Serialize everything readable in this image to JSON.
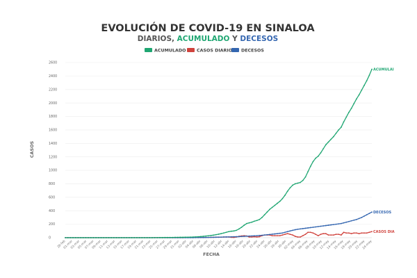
{
  "page": {
    "title": "EVOLUCIÓN DE COVID-19 EN SINALOA",
    "subtitle_parts": [
      {
        "text": "DIARIOS, ",
        "color": "#555555"
      },
      {
        "text": "ACUMULADO",
        "color": "#1fa672"
      },
      {
        "text": " Y ",
        "color": "#555555"
      },
      {
        "text": "DECESOS",
        "color": "#3466b0"
      }
    ]
  },
  "chart_data": {
    "type": "line",
    "title": "EVOLUCIÓN DE COVID-19 EN SINALOA",
    "xlabel": "FECHA",
    "ylabel": "CASOS",
    "ylim": [
      0,
      2600
    ],
    "yticks": [
      0,
      200,
      400,
      600,
      800,
      1000,
      1200,
      1400,
      1600,
      1800,
      2000,
      2200,
      2400,
      2600
    ],
    "grid": true,
    "legend_position": "top-center",
    "x_tick_labels": [
      "28-feb",
      "01-mar",
      "03-mar",
      "05-mar",
      "07-mar",
      "09-mar",
      "11-mar",
      "13-mar",
      "15-mar",
      "17-mar",
      "19-mar",
      "21-mar",
      "23-mar",
      "25-mar",
      "27-mar",
      "29-mar",
      "31-mar",
      "02-abr",
      "04-abr",
      "06-abr",
      "08-abr",
      "10-abr",
      "12-abr",
      "14-abr",
      "16-abr",
      "18-abr",
      "20-abr",
      "22-abr",
      "24-abr",
      "26-abr",
      "28-abr",
      "30-abr",
      "02-may",
      "04-may",
      "06-may",
      "08-may",
      "10-may",
      "12-may",
      "14-may",
      "16-may",
      "18-may",
      "20-may",
      "22-may",
      "24-may"
    ],
    "series": [
      {
        "name": "ACUMULADO",
        "end_label": "ACUMULAI",
        "color": "#1fa672",
        "values": [
          0,
          0,
          0,
          0,
          0,
          0,
          0,
          0,
          0,
          0,
          0,
          0,
          0,
          0,
          0,
          0,
          0,
          0,
          0,
          0,
          0,
          0,
          0,
          0,
          0,
          0,
          0,
          0,
          0,
          0,
          0,
          0,
          0,
          0,
          0,
          1,
          1,
          2,
          2,
          3,
          3,
          4,
          4,
          5,
          5,
          6,
          6,
          7,
          8,
          9,
          10,
          12,
          14,
          17,
          20,
          24,
          28,
          33,
          38,
          45,
          52,
          60,
          70,
          80,
          90,
          96,
          100,
          110,
          130,
          155,
          185,
          210,
          220,
          230,
          245,
          255,
          270,
          300,
          340,
          380,
          420,
          450,
          480,
          510,
          540,
          580,
          630,
          690,
          740,
          780,
          800,
          810,
          820,
          850,
          900,
          980,
          1060,
          1130,
          1180,
          1210,
          1260,
          1320,
          1380,
          1420,
          1460,
          1500,
          1550,
          1600,
          1640,
          1720,
          1790,
          1860,
          1920,
          1990,
          2060,
          2120,
          2190,
          2260,
          2330,
          2410,
          2500
        ]
      },
      {
        "name": "CASOS DIARIOS",
        "end_label": "CASOS DIA",
        "color": "#d0433d",
        "values": [
          0,
          0,
          0,
          0,
          0,
          0,
          0,
          0,
          0,
          0,
          0,
          0,
          0,
          0,
          0,
          0,
          0,
          0,
          0,
          0,
          0,
          0,
          0,
          0,
          0,
          0,
          0,
          0,
          0,
          0,
          0,
          0,
          0,
          0,
          0,
          1,
          0,
          1,
          0,
          1,
          0,
          1,
          0,
          1,
          0,
          1,
          0,
          1,
          1,
          1,
          1,
          2,
          2,
          3,
          3,
          4,
          4,
          5,
          5,
          7,
          7,
          8,
          10,
          10,
          10,
          6,
          4,
          10,
          20,
          25,
          30,
          25,
          10,
          10,
          15,
          10,
          15,
          30,
          40,
          40,
          40,
          30,
          30,
          30,
          30,
          40,
          50,
          60,
          50,
          40,
          20,
          10,
          10,
          30,
          50,
          80,
          80,
          70,
          50,
          30,
          50,
          60,
          60,
          40,
          40,
          40,
          50,
          50,
          40,
          80,
          70,
          70,
          60,
          70,
          70,
          60,
          70,
          70,
          70,
          80,
          90
        ]
      },
      {
        "name": "DECESOS",
        "end_label": "DECESOS",
        "color": "#3466b0",
        "values": [
          0,
          0,
          0,
          0,
          0,
          0,
          0,
          0,
          0,
          0,
          0,
          0,
          0,
          0,
          0,
          0,
          0,
          0,
          0,
          0,
          0,
          0,
          0,
          0,
          0,
          0,
          0,
          0,
          0,
          0,
          0,
          0,
          0,
          0,
          0,
          0,
          0,
          0,
          0,
          0,
          0,
          0,
          0,
          0,
          0,
          0,
          0,
          0,
          0,
          0,
          0,
          1,
          1,
          2,
          2,
          3,
          4,
          5,
          6,
          7,
          8,
          9,
          10,
          11,
          12,
          13,
          14,
          15,
          16,
          18,
          20,
          22,
          24,
          26,
          28,
          30,
          33,
          36,
          40,
          44,
          48,
          52,
          56,
          60,
          65,
          70,
          80,
          90,
          100,
          110,
          118,
          125,
          130,
          135,
          140,
          145,
          150,
          155,
          160,
          165,
          170,
          175,
          180,
          185,
          190,
          195,
          200,
          205,
          210,
          220,
          230,
          240,
          250,
          260,
          270,
          285,
          300,
          320,
          340,
          360,
          380
        ]
      }
    ]
  }
}
